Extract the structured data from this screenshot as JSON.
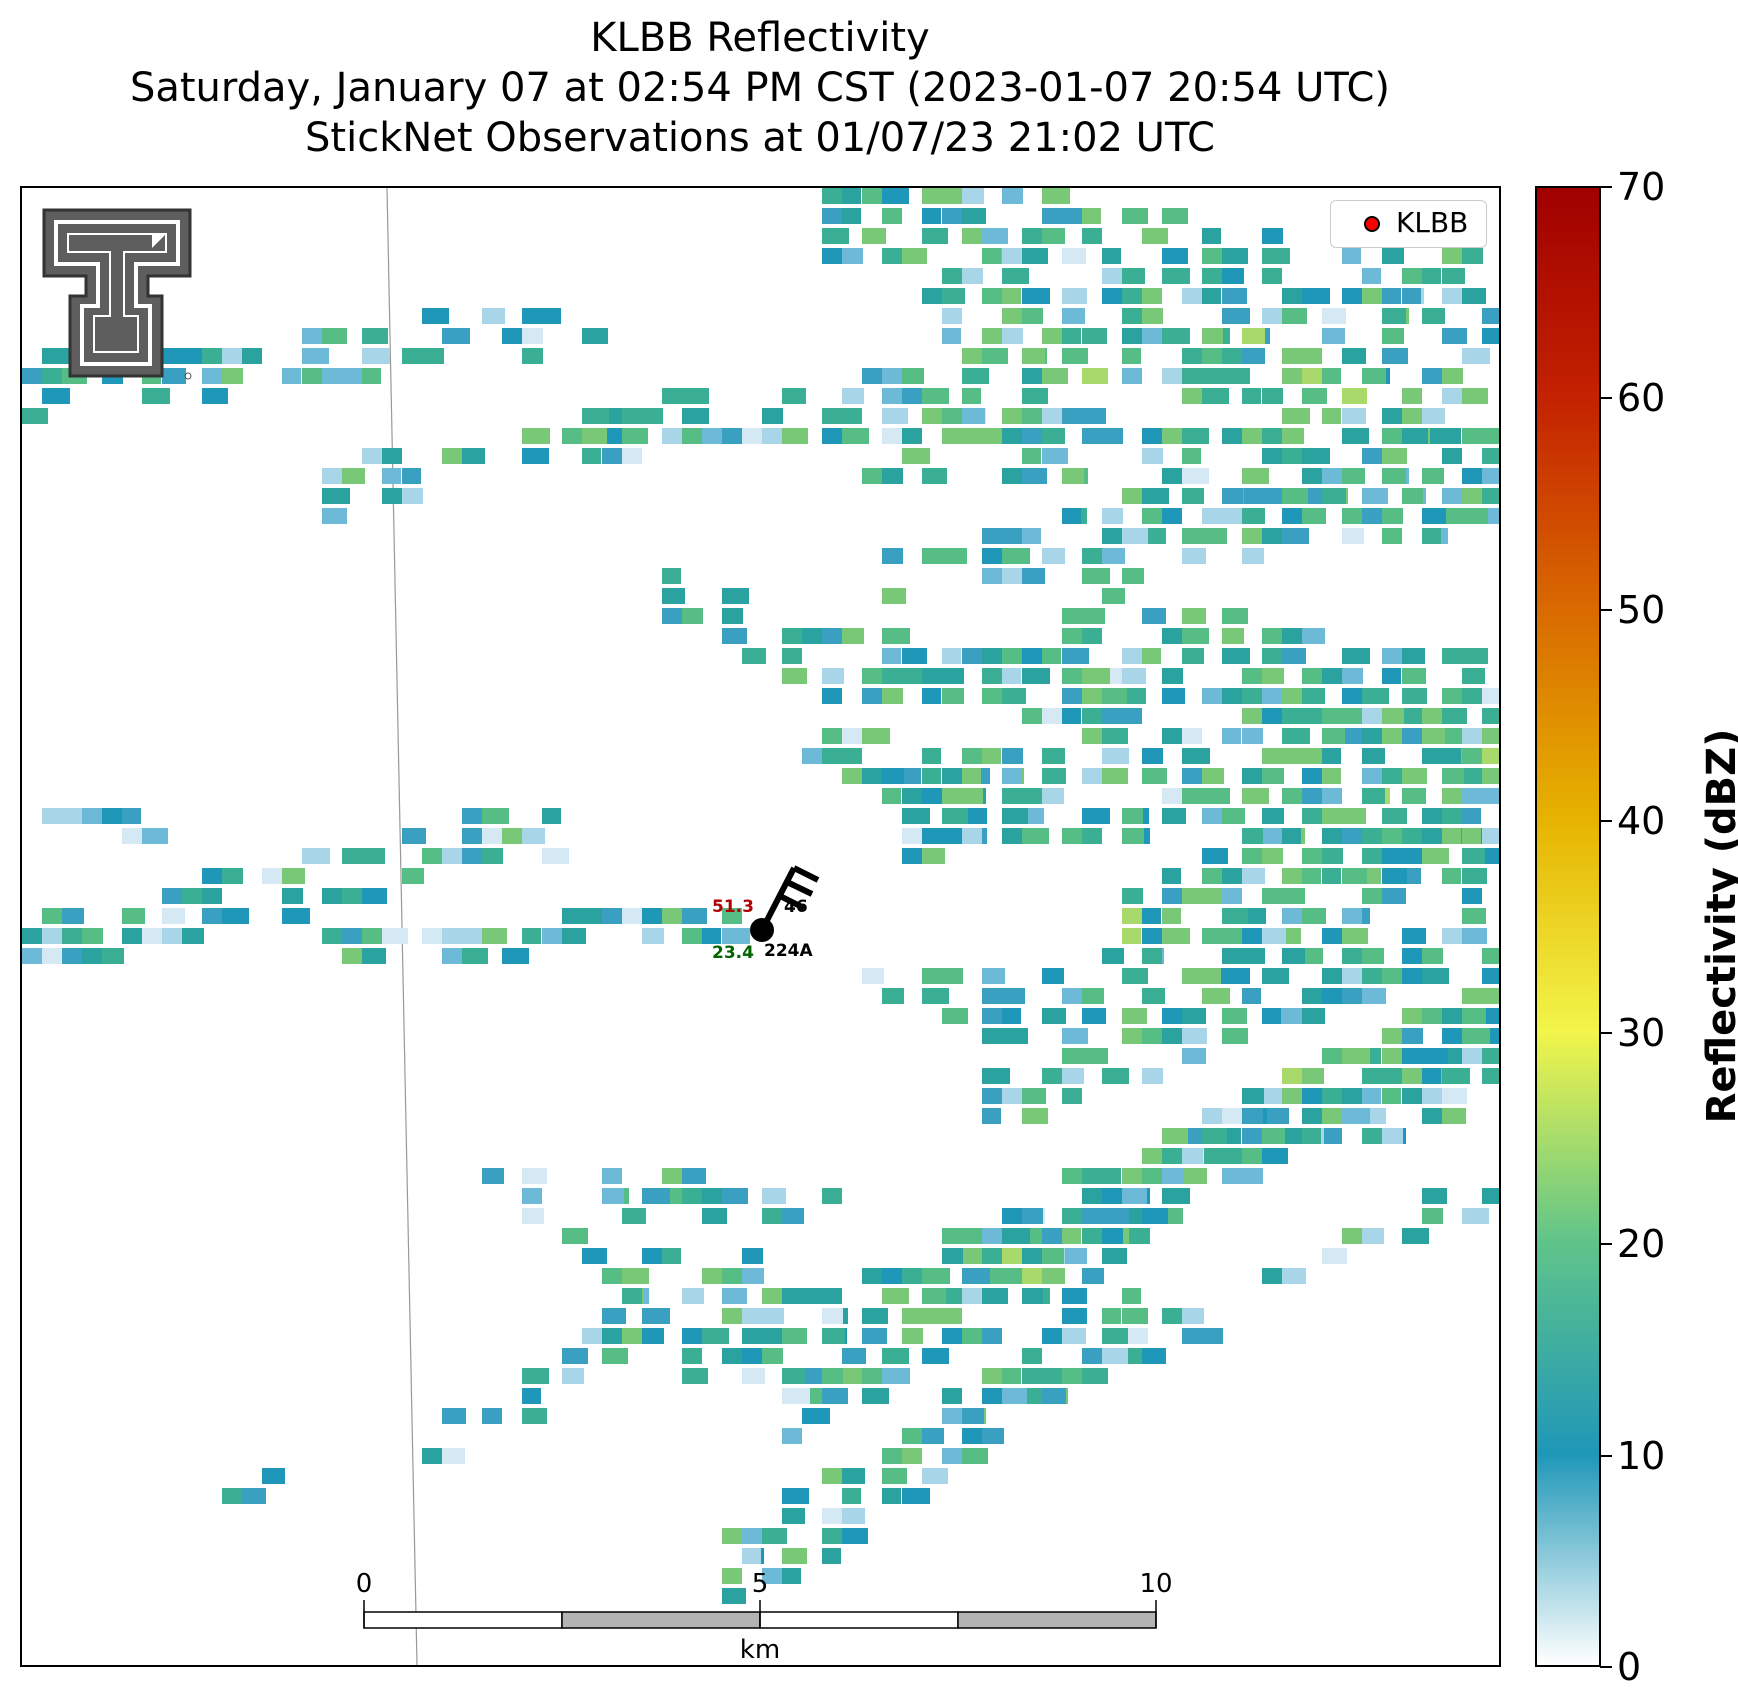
{
  "title": {
    "line1": "KLBB Reflectivity",
    "line2": "Saturday, January 07 at 02:54 PM CST (2023-01-07 20:54 UTC)",
    "line3": "StickNet Observations at 01/07/23 21:02 UTC"
  },
  "legend": {
    "label": "KLBB",
    "marker_color": "#ff0000"
  },
  "logo": {
    "icon": "texas-tech-double-t-logo-icon"
  },
  "colorbar": {
    "label": "Reflectivity (dBZ)",
    "min": 0,
    "max": 70,
    "ticks": [
      "0",
      "10",
      "20",
      "30",
      "40",
      "50",
      "60",
      "70"
    ],
    "colormap": [
      "#ffffff",
      "#1f97b8",
      "#5fc48a",
      "#f2f54a",
      "#e6b400",
      "#d96a00",
      "#c42200",
      "#a00000"
    ]
  },
  "station": {
    "id": "224A",
    "temperature": "51.3",
    "dewpoint": "23.4",
    "pressure_fragment": "46",
    "temperature_color": "#b00000",
    "dewpoint_color": "#006400"
  },
  "scalebar": {
    "unit": "km",
    "labels": [
      "0",
      "5",
      "10"
    ]
  }
}
